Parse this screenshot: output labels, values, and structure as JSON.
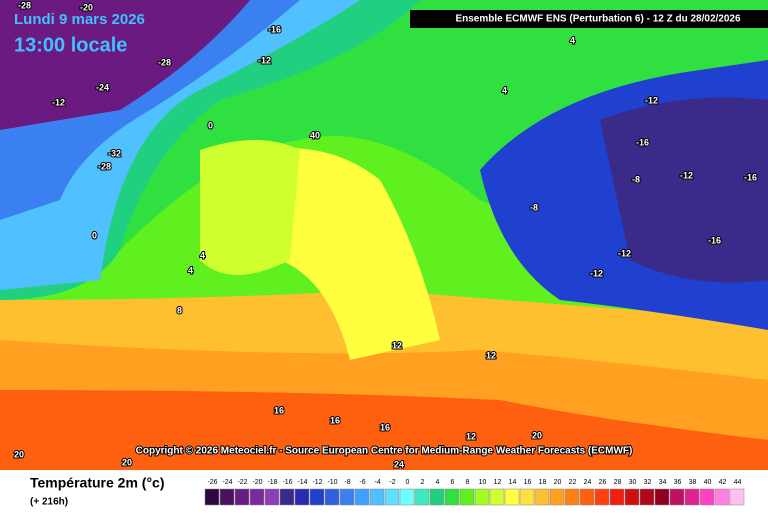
{
  "header": {
    "date": "Lundi 9 mars 2026",
    "time": "13:00 locale",
    "model": "Ensemble ECMWF ENS  (Perturbation 6)  -  12 Z du 28/02/2026"
  },
  "copyright": "Copyright © 2026 Meteociel.fr - Source European Centre for Medium-Range Weather Forecasts (ECMWF)",
  "legend": {
    "title": "Température 2m (°c)",
    "lead": "(+ 216h)",
    "ticks": [
      -26,
      -24,
      -22,
      -20,
      -18,
      -16,
      -14,
      -12,
      -10,
      -8,
      -6,
      -4,
      -2,
      0,
      2,
      4,
      6,
      8,
      10,
      12,
      14,
      16,
      18,
      20,
      22,
      24,
      26,
      28,
      30,
      32,
      34,
      36,
      38,
      40,
      42,
      44
    ],
    "colors": [
      "#2d0a3d",
      "#4b1060",
      "#6a1a80",
      "#7a2a9a",
      "#8b3fb5",
      "#3a2a8a",
      "#2a2ab0",
      "#2040d0",
      "#3060e0",
      "#3a80f0",
      "#40a0ff",
      "#50c0ff",
      "#60e0ff",
      "#70ffff",
      "#40e8c0",
      "#20d080",
      "#30e040",
      "#60f020",
      "#a0ff20",
      "#d0ff30",
      "#ffff40",
      "#ffe040",
      "#ffc030",
      "#ffa020",
      "#ff8010",
      "#ff6010",
      "#ff4010",
      "#f02010",
      "#d01010",
      "#b00818",
      "#900020",
      "#c01060",
      "#e02090",
      "#ff40c0",
      "#ff80e0",
      "#ffc0f0"
    ]
  },
  "map_labels": [
    "-28",
    "-20",
    "-16",
    "-28",
    "-24",
    "-12",
    "-32",
    "-28",
    "-12",
    "0",
    "0",
    "4",
    "4",
    "8",
    "40",
    "4",
    "4",
    "-12",
    "-16",
    "-8",
    "-12",
    "-16",
    "-16",
    "-12",
    "-8",
    "-12",
    "12",
    "12",
    "16",
    "16",
    "16",
    "20",
    "20",
    "12",
    "20",
    "24"
  ]
}
